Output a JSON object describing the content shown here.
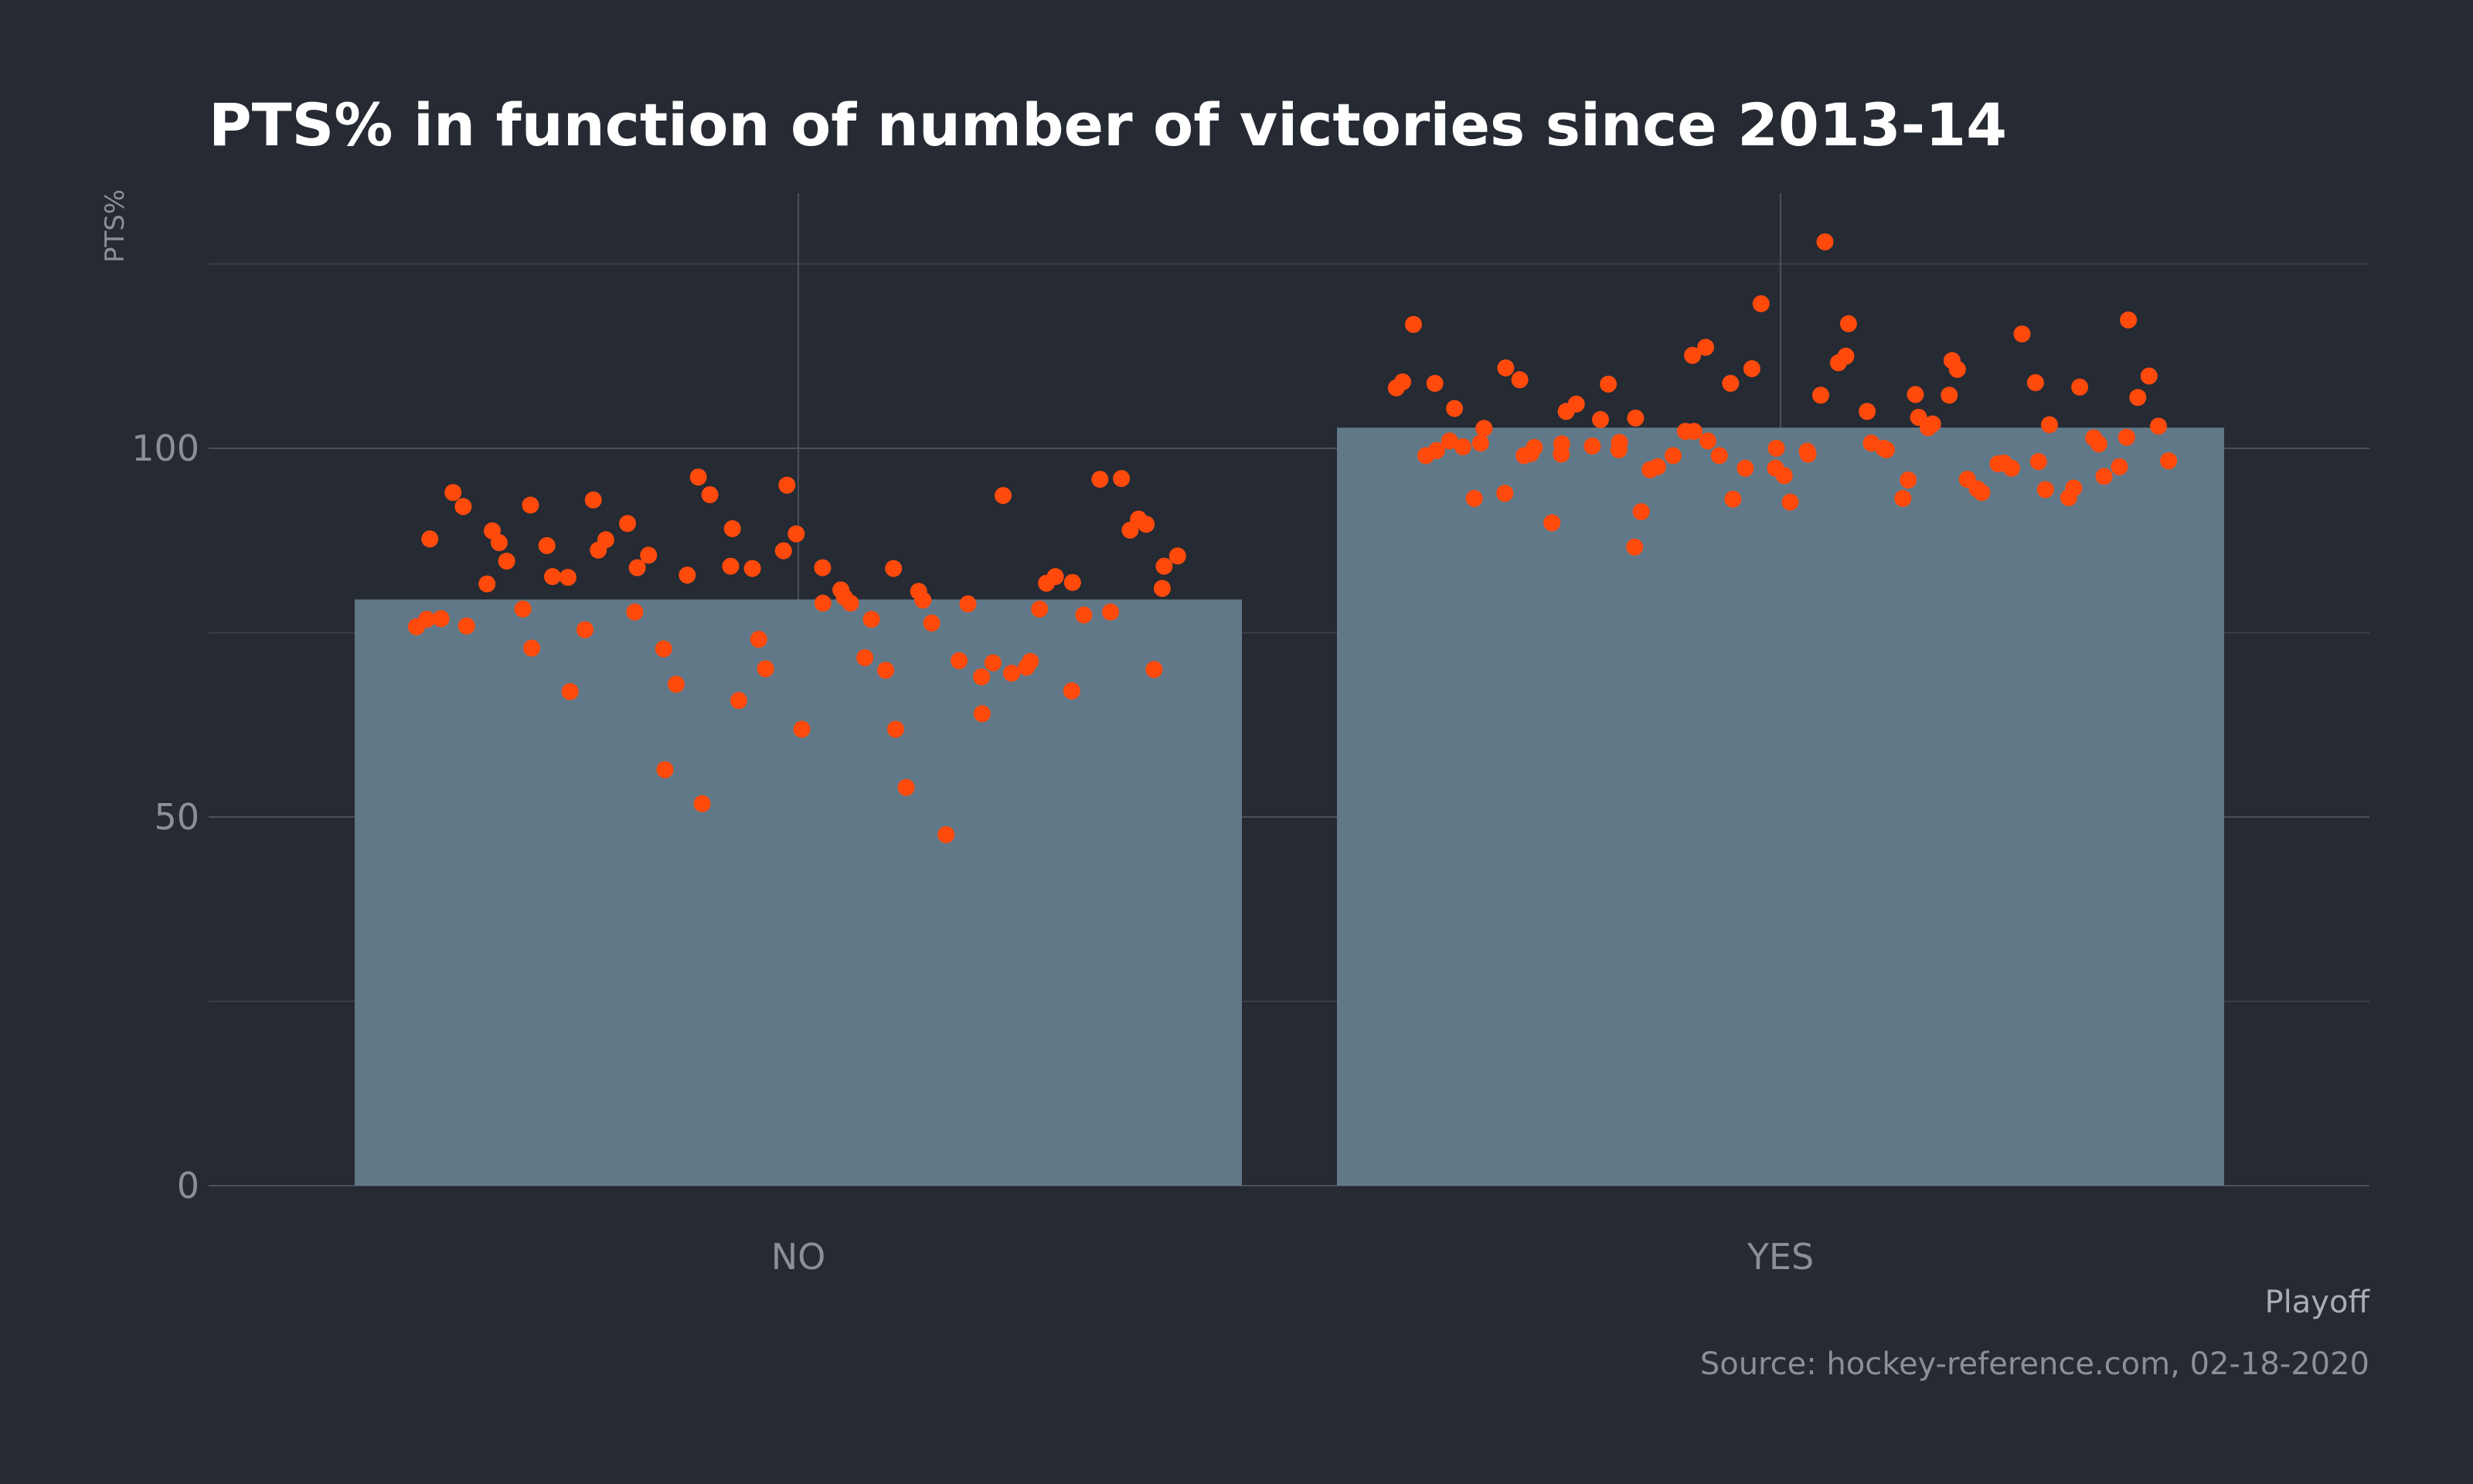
{
  "chart_data": {
    "type": "bar",
    "title": "PTS% in function of number of victories since 2013-14",
    "xlabel": "Playoff",
    "ylabel": "PTS%",
    "caption": "Source: hockey-reference.com, 02-18-2020",
    "categories": [
      "NO",
      "YES"
    ],
    "values": [
      79.5,
      102.8
    ],
    "ylim": [
      0,
      130
    ],
    "yticks": [
      0,
      50,
      100
    ],
    "grid": true,
    "legend": "none",
    "colors": {
      "bar": "#617888",
      "points": "#ff4a0c",
      "background": "#252a33",
      "title": "#ffffff"
    },
    "points": [
      {
        "category": "NO",
        "values": [
          75.8,
          76.8,
          87.7,
          76.9,
          94.0,
          92.1,
          75.9,
          81.6,
          88.8,
          87.2,
          84.7,
          78.2,
          92.3,
          72.9,
          86.8,
          82.6,
          82.5,
          67.0,
          75.4,
          93.0,
          86.2,
          87.6,
          89.8,
          83.8,
          77.8,
          85.5,
          56.4,
          72.8,
          68.0,
          82.8,
          96.1,
          51.8,
          93.7,
          84.0,
          89.1,
          65.8,
          83.7,
          74.1,
          70.1,
          86.1,
          95.0,
          88.4,
          61.9,
          79.0,
          83.8,
          80.8,
          79.8,
          79.0,
          71.6,
          76.8,
          69.9,
          83.7,
          61.9,
          54.0,
          80.6,
          79.4,
          76.3,
          47.6,
          71.2,
          78.9,
          69.0,
          64.0,
          70.9,
          93.6,
          69.5,
          70.3,
          71.1,
          78.2,
          81.7,
          82.6,
          67.1,
          81.8,
          77.4,
          95.8,
          77.8,
          95.9,
          88.9,
          90.4,
          89.7,
          70.0,
          81.0,
          84.0,
          85.4
        ]
      },
      {
        "category": "YES",
        "values": [
          108.2,
          109.0,
          116.8,
          99.0,
          108.8,
          99.7,
          105.4,
          101.0,
          100.2,
          93.2,
          100.7,
          102.7,
          93.9,
          110.9,
          109.3,
          99.0,
          99.3,
          100.1,
          89.9,
          100.6,
          99.2,
          105.0,
          106.0,
          100.3,
          103.9,
          108.7,
          100.8,
          99.8,
          104.1,
          86.6,
          91.4,
          97.1,
          97.5,
          99.0,
          102.3,
          102.3,
          112.6,
          113.7,
          101.0,
          99.0,
          108.8,
          93.1,
          97.3,
          110.8,
          119.6,
          100.0,
          97.3,
          96.3,
          92.7,
          99.6,
          99.2,
          107.2,
          128.0,
          111.6,
          112.5,
          116.9,
          105.0,
          100.7,
          100.0,
          99.8,
          93.2,
          95.7,
          107.3,
          104.2,
          102.8,
          103.3,
          111.9,
          107.2,
          110.7,
          95.8,
          94.5,
          94.0,
          97.9,
          98.0,
          97.3,
          115.5,
          108.9,
          98.2,
          94.4,
          103.2,
          93.3,
          94.6,
          108.3,
          101.4,
          100.6,
          96.2,
          97.5,
          101.5,
          117.4,
          106.9,
          109.8,
          103.0,
          98.3
        ]
      }
    ]
  }
}
